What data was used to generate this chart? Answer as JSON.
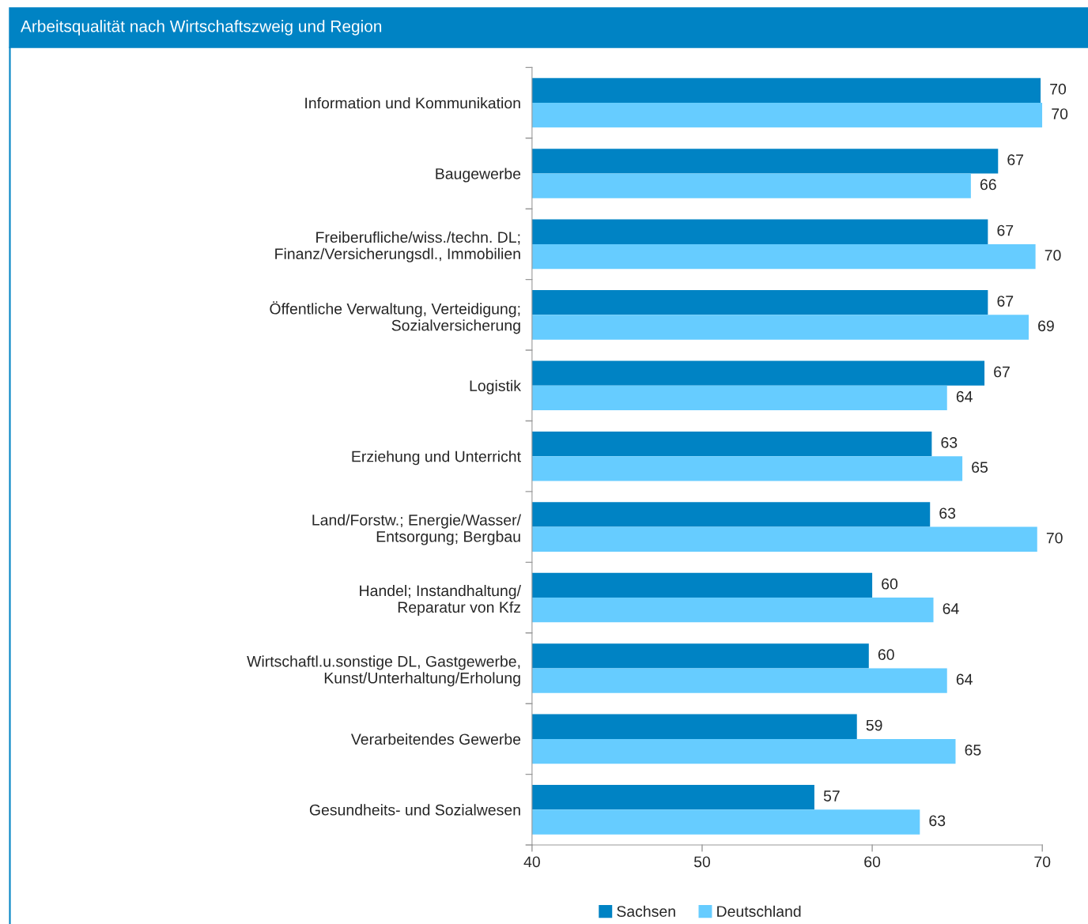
{
  "chart_data": {
    "type": "bar",
    "orientation": "horizontal",
    "title": "Arbeitsqualität nach Wirtschaftszweig und Region",
    "categories": [
      "Information und Kommunikation",
      "Baugewerbe",
      "Freiberufliche/wiss./techn. DL;\nFinanz/Versicherungsdl., Immobilien",
      "Öffentliche Verwaltung, Verteidigung;\nSozialversicherung",
      "Logistik",
      "Erziehung und Unterricht",
      "Land/Forstw.; Energie/Wasser/\nEntsorgung; Bergbau",
      "Handel; Instandhaltung/\nReparatur von Kfz",
      "Wirtschaftl.u.sonstige DL, Gastgewerbe,\nKunst/Unterhaltung/Erholung",
      "Verarbeitendes Gewerbe",
      "Gesundheits- und Sozialwesen"
    ],
    "series": [
      {
        "name": "Sachsen",
        "color": "#0083c4",
        "values": [
          69.9,
          67.4,
          66.8,
          66.8,
          66.6,
          63.5,
          63.4,
          60.0,
          59.8,
          59.1,
          56.6
        ],
        "value_labels": [
          "70",
          "67",
          "67",
          "67",
          "67",
          "63",
          "63",
          "60",
          "60",
          "59",
          "57"
        ]
      },
      {
        "name": "Deutschland",
        "color": "#66ccff",
        "values": [
          70.0,
          65.8,
          69.6,
          69.2,
          64.4,
          65.3,
          69.7,
          63.6,
          64.4,
          64.9,
          62.8
        ],
        "value_labels": [
          "70",
          "66",
          "70",
          "69",
          "64",
          "65",
          "70",
          "64",
          "64",
          "65",
          "63"
        ]
      }
    ],
    "xlim": [
      40,
      70
    ],
    "xticks": [
      40,
      50,
      60,
      70
    ],
    "grid": false,
    "legend": "bottom"
  }
}
